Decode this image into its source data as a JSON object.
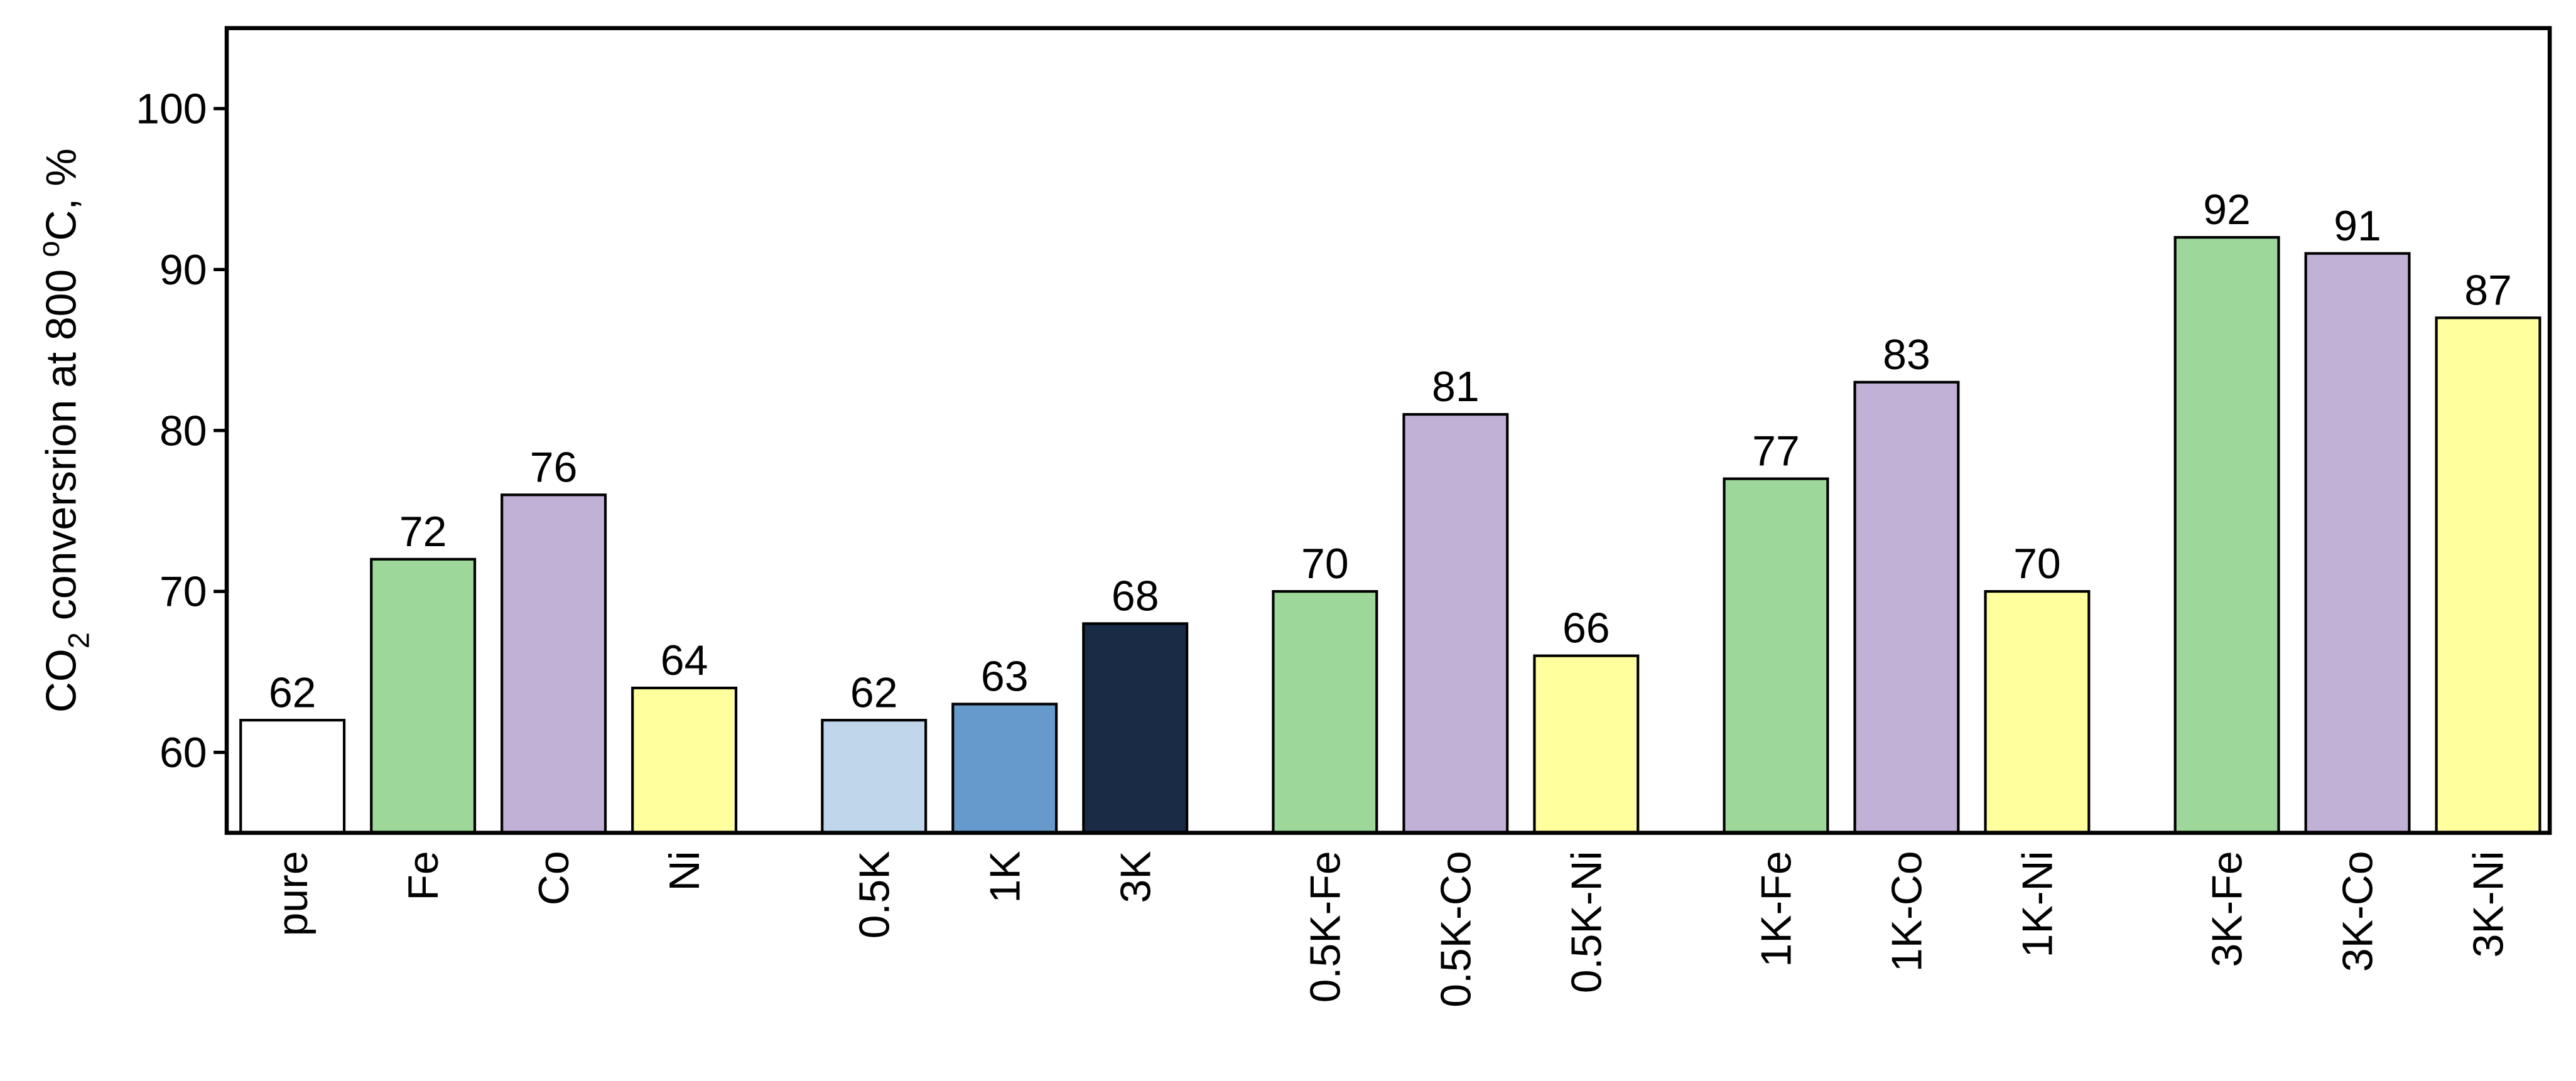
{
  "chart_data": {
    "type": "bar",
    "ylabel": [
      "CO",
      "2",
      " conversrion at 800 ",
      "o",
      "C, %"
    ],
    "categories": [
      "pure",
      "Fe",
      "Co",
      "Ni",
      "0.5K",
      "1K",
      "3K",
      "0.5K-Fe",
      "0.5K-Co",
      "0.5K-Ni",
      "1K-Fe",
      "1K-Co",
      "1K-Ni",
      "3K-Fe",
      "3K-Co",
      "3K-Ni"
    ],
    "values": [
      62,
      72,
      76,
      64,
      62,
      63,
      68,
      70,
      81,
      66,
      77,
      83,
      70,
      92,
      91,
      87
    ],
    "colors": [
      "#ffffff",
      "#9dd79a",
      "#c2b1d6",
      "#ffff9e",
      "#c0d6ea",
      "#6699cc",
      "#1a2b45",
      "#9dd79a",
      "#c2b1d6",
      "#ffff9e",
      "#9dd79a",
      "#c2b1d6",
      "#ffff9e",
      "#9dd79a",
      "#c2b1d6",
      "#ffff9e"
    ],
    "ylim": [
      55,
      105
    ],
    "yticks": [
      60,
      70,
      80,
      90,
      100
    ]
  }
}
